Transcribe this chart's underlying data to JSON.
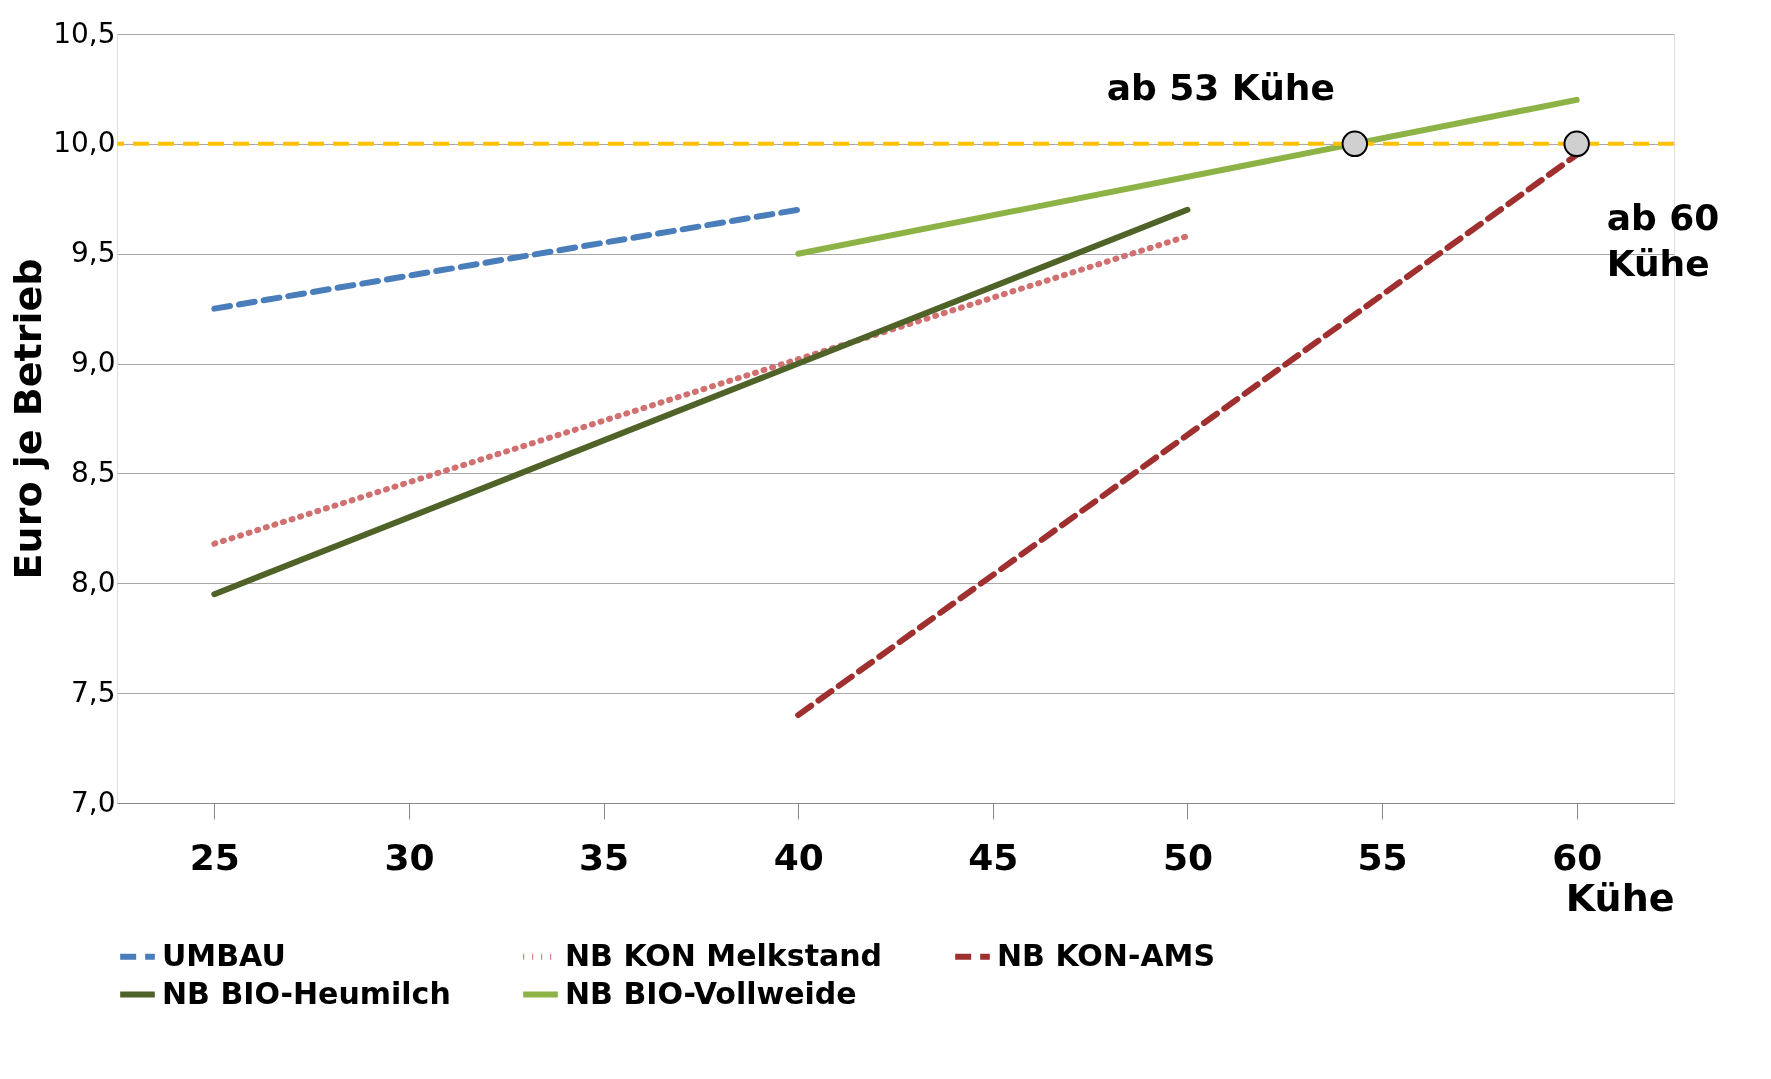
{
  "chart_data": {
    "type": "line",
    "xlabel": "Kühe",
    "ylabel": "Euro je Betrieb",
    "xlim": [
      22.5,
      62.5
    ],
    "xticks": [
      25,
      30,
      35,
      40,
      45,
      50,
      55,
      60
    ],
    "ylim": [
      7,
      10.5
    ],
    "yticks": [
      {
        "value": 7,
        "label": "7,0"
      },
      {
        "value": 7.5,
        "label": "7,5"
      },
      {
        "value": 8,
        "label": "8,0"
      },
      {
        "value": 8.5,
        "label": "8,5"
      },
      {
        "value": 9,
        "label": "9,0"
      },
      {
        "value": 9.5,
        "label": "9,5"
      },
      {
        "value": 10,
        "label": "10,0"
      },
      {
        "value": 10.5,
        "label": "10,5"
      }
    ],
    "grid": "y",
    "legend": "bottom",
    "marker": "none",
    "series": [
      {
        "name": "UMBAU",
        "color": "#4a7ebb",
        "line_style": "dashed",
        "x": [
          25,
          40
        ],
        "values": [
          9.25,
          9.7
        ]
      },
      {
        "name": "NB KON Melkstand",
        "color": "#d07070",
        "line_style": "dotted",
        "x": [
          25,
          50
        ],
        "values": [
          8.18,
          9.58
        ]
      },
      {
        "name": "NB KON-AMS",
        "color": "#a03030",
        "line_style": "dashed",
        "x": [
          40,
          60
        ],
        "values": [
          7.4,
          9.95
        ]
      },
      {
        "name": "NB BIO-Heumilch",
        "color": "#4f6228",
        "line_style": "solid",
        "x": [
          25,
          50
        ],
        "values": [
          7.95,
          9.7
        ]
      },
      {
        "name": "NB BIO-Vollweide",
        "color": "#8db347",
        "line_style": "solid",
        "x": [
          40,
          60
        ],
        "values": [
          9.5,
          10.2
        ]
      }
    ],
    "ref_lines": [
      {
        "axis": "y",
        "value": 10,
        "color": "#ffc000",
        "line_style": "dashed"
      }
    ],
    "annotations": [
      {
        "text": "ab 53 Kühe",
        "x": 54.3,
        "y": 10
      },
      {
        "text": "ab 60\nKühe",
        "x": 60,
        "y": 10
      }
    ]
  }
}
